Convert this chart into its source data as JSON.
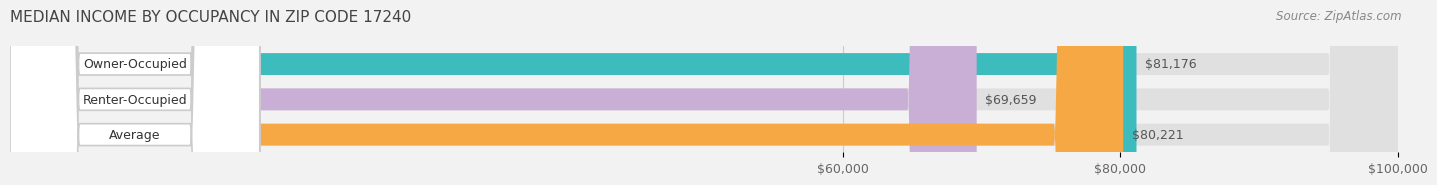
{
  "title": "MEDIAN INCOME BY OCCUPANCY IN ZIP CODE 17240",
  "source": "Source: ZipAtlas.com",
  "categories": [
    "Owner-Occupied",
    "Renter-Occupied",
    "Average"
  ],
  "values": [
    81176,
    69659,
    80221
  ],
  "bar_colors": [
    "#3cbcbc",
    "#c9aed6",
    "#f5a843"
  ],
  "value_labels": [
    "$81,176",
    "$69,659",
    "$80,221"
  ],
  "xlim": [
    0,
    100000
  ],
  "xticks": [
    60000,
    80000,
    100000
  ],
  "xtick_labels": [
    "$60,000",
    "$80,000",
    "$100,000"
  ],
  "background_color": "#f2f2f2",
  "bar_bg_color": "#e0e0e0",
  "label_bg_color": "#ffffff",
  "title_fontsize": 11,
  "source_fontsize": 8.5,
  "label_fontsize": 9,
  "value_fontsize": 9,
  "tick_fontsize": 9,
  "bar_height": 0.62
}
